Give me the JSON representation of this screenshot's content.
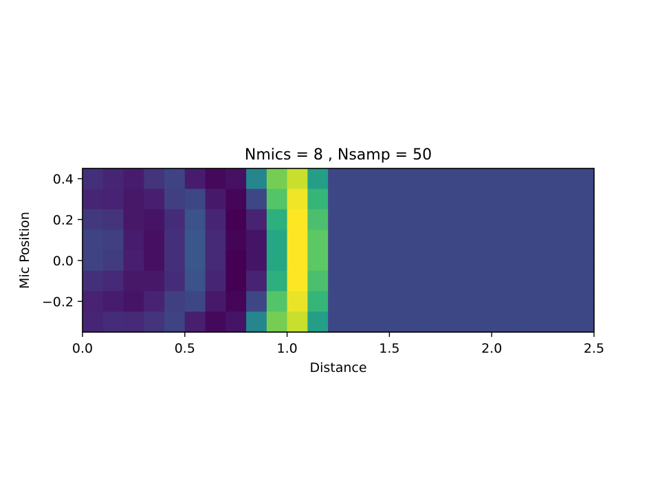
{
  "chart_data": {
    "type": "heatmap",
    "title": "Nmics = 8 , Nsamp = 50",
    "xlabel": "Distance",
    "ylabel": "Mic Position",
    "xlim": [
      0.0,
      2.5
    ],
    "ylim": [
      -0.35,
      0.45
    ],
    "x_ticks": [
      0.0,
      0.5,
      1.0,
      1.5,
      2.0,
      2.5
    ],
    "x_tick_labels": [
      "0.0",
      "0.5",
      "1.0",
      "1.5",
      "2.0",
      "2.5"
    ],
    "y_ticks": [
      -0.2,
      0.0,
      0.2,
      0.4
    ],
    "y_tick_labels": [
      "−0.2",
      "0.0",
      "0.2",
      "0.4"
    ],
    "colormap": "viridis",
    "grid": false,
    "cell_width": 0.1,
    "cell_height": 0.1,
    "x_centers": [
      0.05,
      0.15,
      0.25,
      0.35,
      0.45,
      0.55,
      0.65,
      0.75,
      0.85,
      0.95,
      1.05,
      1.15,
      1.25,
      1.35,
      1.45,
      1.55,
      1.65,
      1.75,
      1.85,
      1.95,
      2.05,
      2.15,
      2.25,
      2.35,
      2.45
    ],
    "y_centers": [
      0.4,
      0.3,
      0.2,
      0.1,
      0.0,
      -0.1,
      -0.2,
      -0.3
    ],
    "color_range": [
      0.0,
      1.0
    ],
    "values": [
      [
        0.16,
        0.13,
        0.1,
        0.17,
        0.21,
        0.1,
        0.03,
        0.06,
        0.46,
        0.79,
        0.92,
        0.56,
        0.22,
        0.22,
        0.22,
        0.22,
        0.22,
        0.22,
        0.22,
        0.22,
        0.22,
        0.22,
        0.22,
        0.22,
        0.22
      ],
      [
        0.13,
        0.12,
        0.08,
        0.11,
        0.2,
        0.22,
        0.09,
        0.02,
        0.22,
        0.73,
        0.98,
        0.66,
        0.22,
        0.22,
        0.22,
        0.22,
        0.22,
        0.22,
        0.22,
        0.22,
        0.22,
        0.22,
        0.22,
        0.22,
        0.22
      ],
      [
        0.18,
        0.17,
        0.08,
        0.07,
        0.15,
        0.25,
        0.13,
        0.0,
        0.12,
        0.64,
        1.0,
        0.71,
        0.22,
        0.22,
        0.22,
        0.22,
        0.22,
        0.22,
        0.22,
        0.22,
        0.22,
        0.22,
        0.22,
        0.22,
        0.22
      ],
      [
        0.21,
        0.2,
        0.1,
        0.05,
        0.16,
        0.27,
        0.14,
        0.01,
        0.07,
        0.6,
        1.0,
        0.75,
        0.22,
        0.22,
        0.22,
        0.22,
        0.22,
        0.22,
        0.22,
        0.22,
        0.22,
        0.22,
        0.22,
        0.22,
        0.22
      ],
      [
        0.21,
        0.19,
        0.11,
        0.05,
        0.16,
        0.27,
        0.14,
        0.0,
        0.07,
        0.6,
        1.0,
        0.75,
        0.22,
        0.22,
        0.22,
        0.22,
        0.22,
        0.22,
        0.22,
        0.22,
        0.22,
        0.22,
        0.22,
        0.22,
        0.22
      ],
      [
        0.16,
        0.14,
        0.08,
        0.08,
        0.15,
        0.25,
        0.13,
        0.0,
        0.12,
        0.64,
        1.0,
        0.71,
        0.22,
        0.22,
        0.22,
        0.22,
        0.22,
        0.22,
        0.22,
        0.22,
        0.22,
        0.22,
        0.22,
        0.22,
        0.22
      ],
      [
        0.12,
        0.1,
        0.07,
        0.12,
        0.2,
        0.22,
        0.09,
        0.02,
        0.22,
        0.73,
        0.97,
        0.66,
        0.22,
        0.22,
        0.22,
        0.22,
        0.22,
        0.22,
        0.22,
        0.22,
        0.22,
        0.22,
        0.22,
        0.22,
        0.22
      ],
      [
        0.13,
        0.15,
        0.14,
        0.17,
        0.21,
        0.11,
        0.03,
        0.07,
        0.46,
        0.79,
        0.92,
        0.56,
        0.22,
        0.22,
        0.22,
        0.22,
        0.22,
        0.22,
        0.22,
        0.22,
        0.22,
        0.22,
        0.22,
        0.22,
        0.22
      ]
    ]
  }
}
